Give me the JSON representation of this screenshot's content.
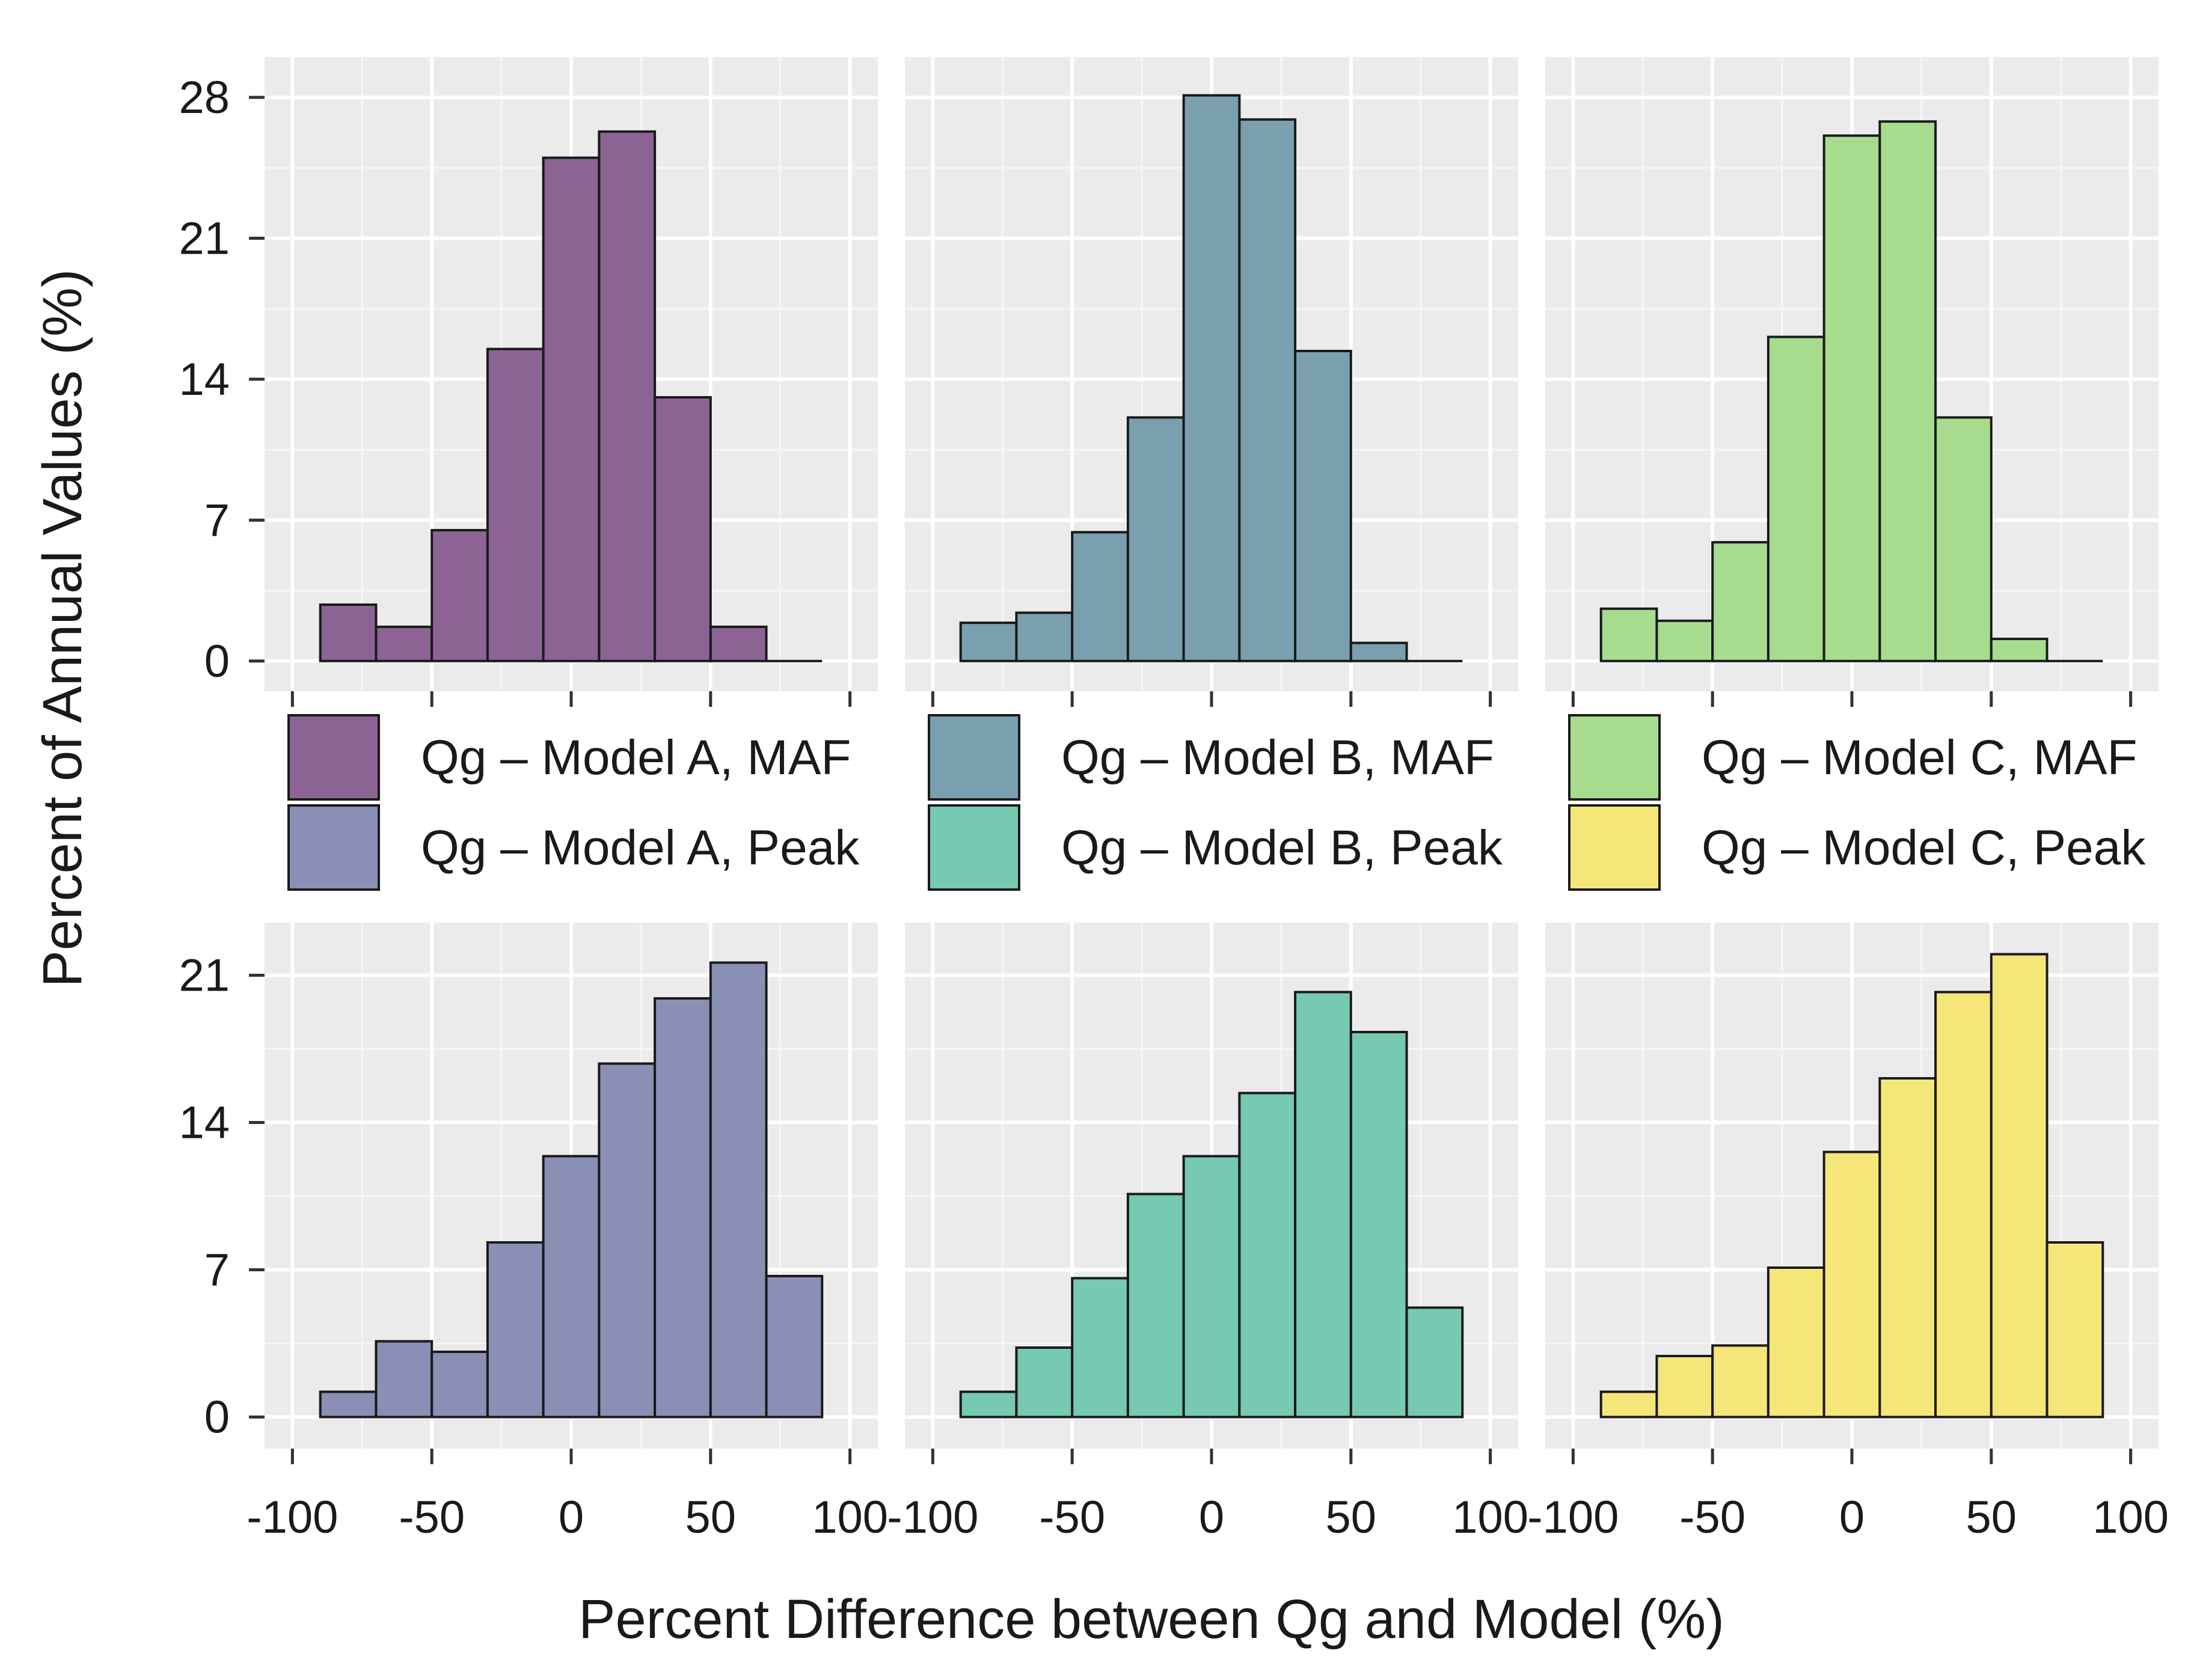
{
  "chart_data": {
    "type": "bar",
    "subtype": "histogram-facet-grid",
    "xlabel": "Percent Difference between Qg and Model (%)",
    "ylabel": "Percent of Annual Values (%)",
    "bin_width": 20,
    "bin_starts": [
      -90,
      -70,
      -50,
      -30,
      -10,
      10,
      30,
      50,
      70
    ],
    "x_ticks": [
      -100,
      -50,
      0,
      50,
      100
    ],
    "x_tick_labels": [
      "-100",
      "-50",
      "0",
      "50",
      "100"
    ],
    "xlim": [
      -110,
      110
    ],
    "rows": [
      {
        "ylim": [
          -1.5,
          30
        ],
        "y_ticks": [
          0,
          7,
          14,
          21,
          28
        ],
        "y_tick_labels": [
          "0",
          "7",
          "14",
          "21",
          "28"
        ]
      },
      {
        "ylim": [
          -1.5,
          23.5
        ],
        "y_ticks": [
          0,
          7,
          14,
          21
        ],
        "y_tick_labels": [
          "0",
          "7",
          "14",
          "21"
        ]
      }
    ],
    "panels": [
      {
        "name": "Qg – Model A, MAF",
        "row": 0,
        "col": 0,
        "color": "#8b6494",
        "values": [
          2.8,
          1.7,
          6.5,
          15.5,
          25,
          26.3,
          13.1,
          1.7,
          0
        ]
      },
      {
        "name": "Qg – Model B, MAF",
        "row": 0,
        "col": 1,
        "color": "#7a9fae",
        "values": [
          1.9,
          2.4,
          6.4,
          12.1,
          28.1,
          26.9,
          15.4,
          0.9,
          0
        ]
      },
      {
        "name": "Qg – Model C, MAF",
        "row": 0,
        "col": 2,
        "color": "#a7dc8e",
        "values": [
          2.6,
          2.0,
          5.9,
          16.1,
          26.1,
          26.8,
          12.1,
          1.1,
          0
        ]
      },
      {
        "name": "Qg – Model A, Peak",
        "row": 1,
        "col": 0,
        "color": "#8a8fb6",
        "values": [
          1.2,
          3.6,
          3.1,
          8.3,
          12.4,
          16.8,
          19.9,
          21.6,
          6.7
        ]
      },
      {
        "name": "Qg – Model B, Peak",
        "row": 1,
        "col": 1,
        "color": "#76c9b2",
        "values": [
          1.2,
          3.3,
          6.6,
          10.6,
          12.4,
          15.4,
          20.2,
          18.3,
          5.2
        ]
      },
      {
        "name": "Qg – Model C, Peak",
        "row": 1,
        "col": 2,
        "color": "#f5e67a",
        "values": [
          1.2,
          2.9,
          3.4,
          7.1,
          12.6,
          16.1,
          20.2,
          22.0,
          8.3
        ]
      }
    ],
    "legend": {
      "placement": "middle",
      "entries": [
        {
          "label": "Qg – Model A, MAF",
          "color": "#8b6494"
        },
        {
          "label": "Qg – Model A, Peak",
          "color": "#8a8fb6"
        },
        {
          "label": "Qg – Model B, MAF",
          "color": "#7a9fae"
        },
        {
          "label": "Qg – Model B, Peak",
          "color": "#76c9b2"
        },
        {
          "label": "Qg – Model C, MAF",
          "color": "#a7dc8e"
        },
        {
          "label": "Qg – Model C, Peak",
          "color": "#f5e67a"
        }
      ]
    },
    "panel_background": "#ebebeb",
    "grid": true
  }
}
